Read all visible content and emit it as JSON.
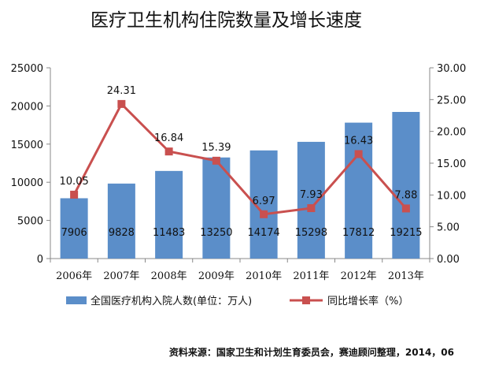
{
  "chart_data": {
    "type": "bar+line",
    "title": "医疗卫生机构住院数量及增长速度",
    "categories": [
      "2006年",
      "2007年",
      "2008年",
      "2009年",
      "2010年",
      "2011年",
      "2012年",
      "2013年"
    ],
    "series": [
      {
        "name": "全国医疗机构入院人数(单位：万人)",
        "type": "bar",
        "axis": "left",
        "values": [
          7906,
          9828,
          11483,
          13250,
          14174,
          15298,
          17812,
          19215
        ],
        "color": "#5B8EC9"
      },
      {
        "name": "同比增长率（%）",
        "type": "line",
        "axis": "right",
        "values": [
          10.05,
          24.31,
          16.84,
          15.39,
          6.97,
          7.93,
          16.43,
          7.88
        ],
        "color": "#C9504F"
      }
    ],
    "y_left": {
      "min": 0,
      "max": 25000,
      "ticks": [
        "0",
        "5000",
        "10000",
        "15000",
        "20000",
        "25000"
      ]
    },
    "y_right": {
      "min": 0,
      "max": 30,
      "ticks": [
        "0.00",
        "5.00",
        "10.00",
        "15.00",
        "20.00",
        "25.00",
        "30.00"
      ]
    },
    "legend_position": "bottom",
    "grid": false
  },
  "source_note": "资料来源：国家卫生和计划生育委员会，赛迪顾问整理，2014，06"
}
